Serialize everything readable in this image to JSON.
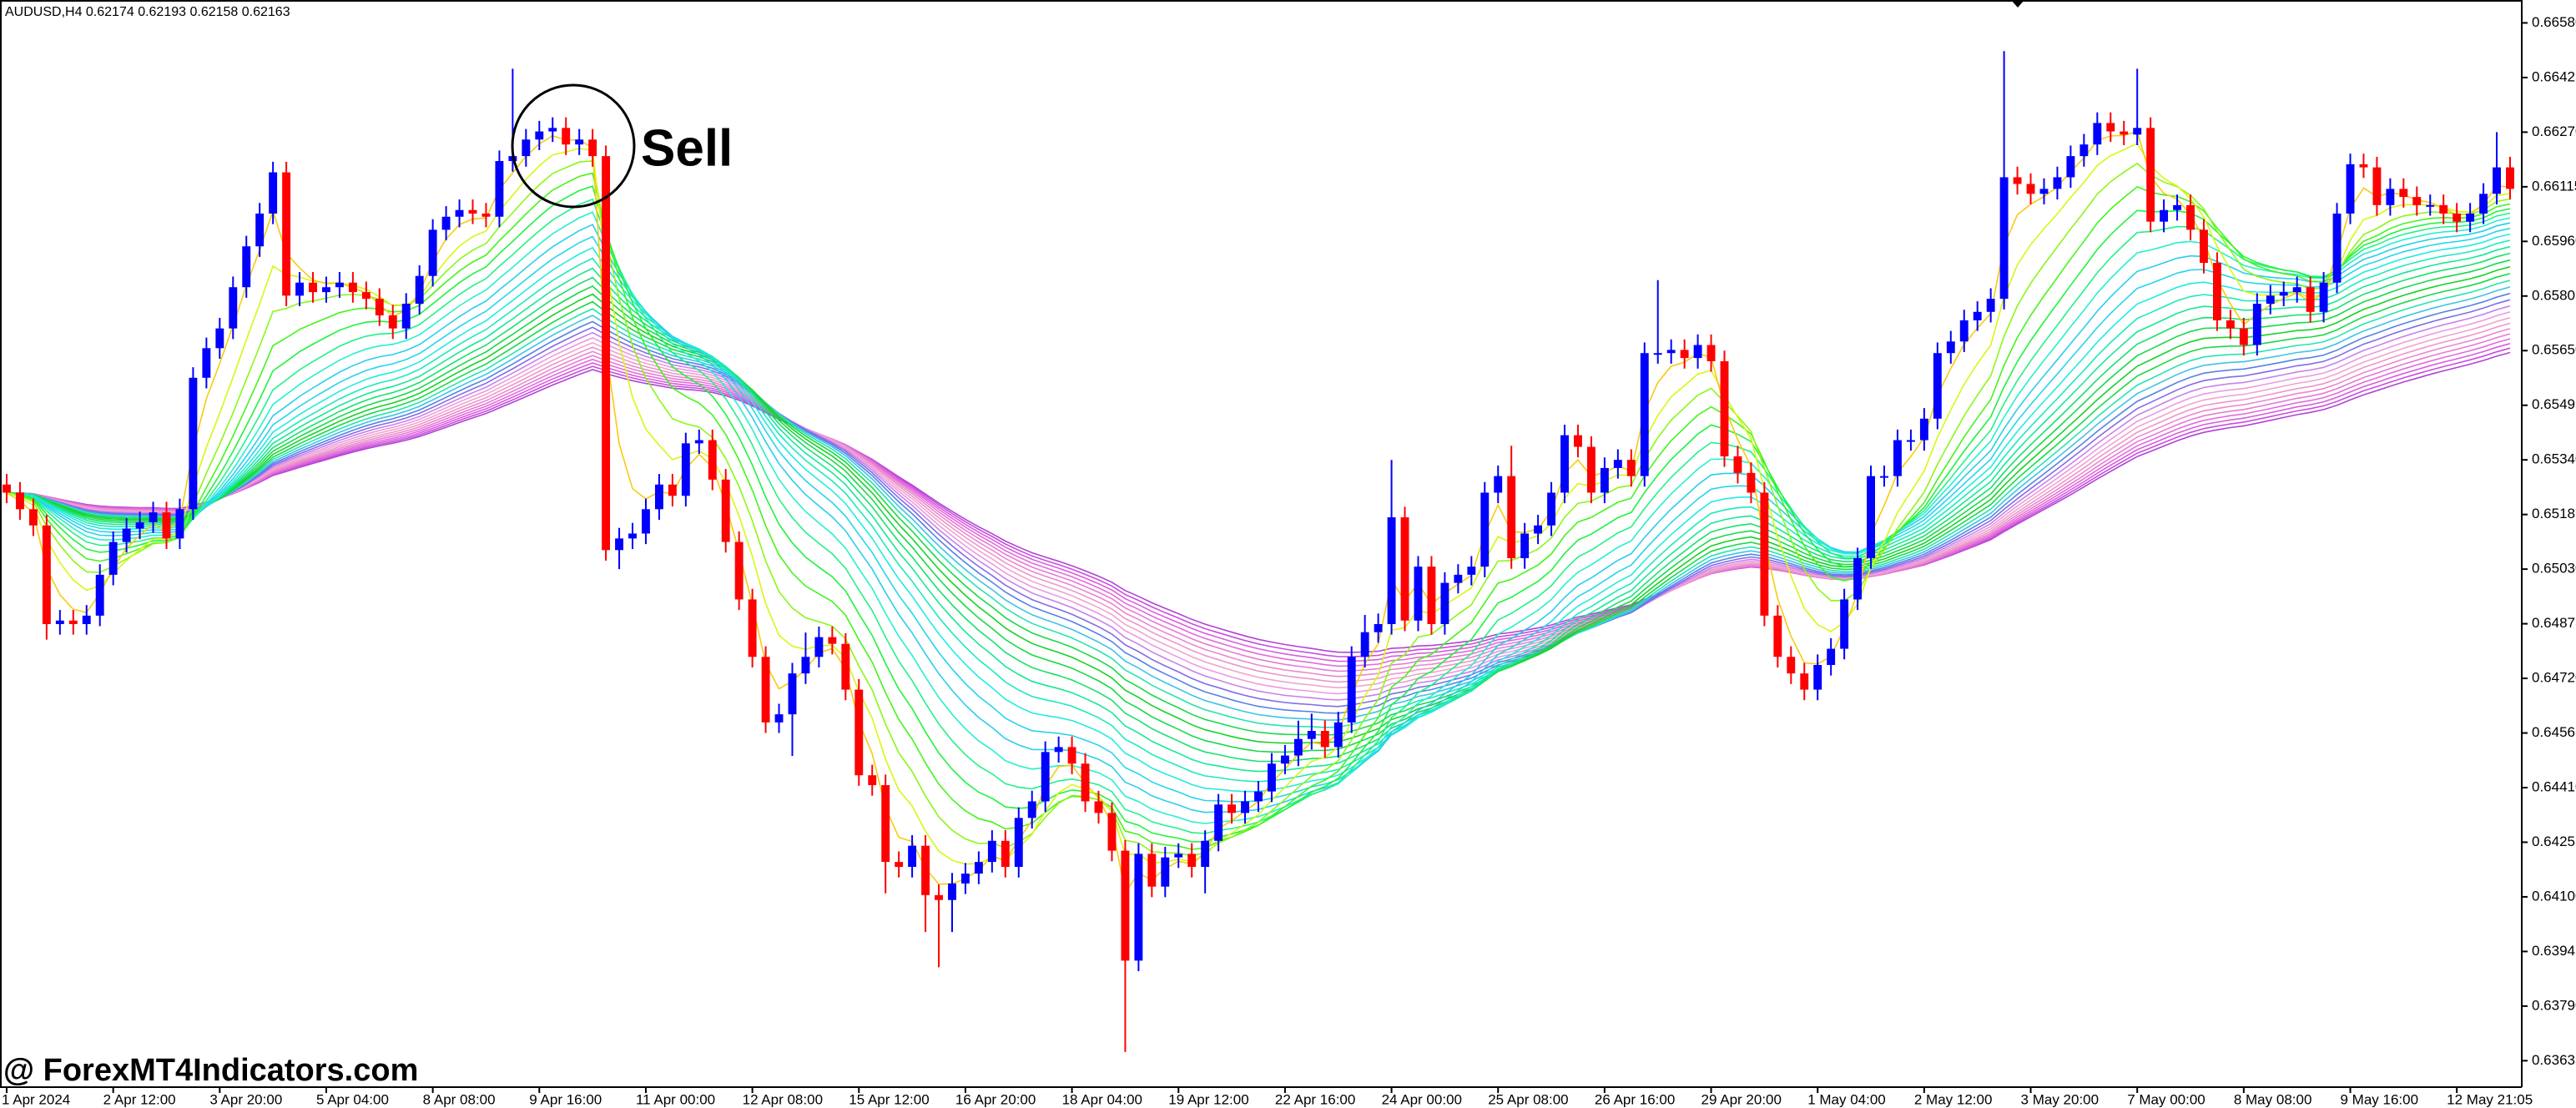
{
  "chart_data": {
    "type": "candlestick",
    "header": "AUDUSD,H4  0.62174 0.62193 0.62158 0.62163",
    "annotation": "Sell",
    "watermark": "@ ForexMT4Indicators.com",
    "up_color": "#0000ff",
    "down_color": "#ff0000",
    "ylim": [
      0.6356,
      0.66645
    ],
    "yticks": [
      {
        "value": 0.6658,
        "label": "0.66580"
      },
      0.66425,
      {
        "value": 0.6627,
        "label": "0.66270"
      },
      0.66115,
      {
        "value": 0.6596,
        "label": "0.65960"
      },
      0.65805,
      {
        "value": 0.6565,
        "label": "0.65650"
      },
      0.65495,
      {
        "value": 0.6534,
        "label": "0.65340"
      },
      0.65185,
      {
        "value": 0.6503,
        "label": "0.65030"
      },
      0.64875,
      {
        "value": 0.6472,
        "label": "0.64720"
      },
      0.64565,
      {
        "value": 0.6441,
        "label": "0.64410"
      },
      0.64255,
      {
        "value": 0.641,
        "label": "0.64100"
      },
      0.63945,
      {
        "value": 0.6379,
        "label": "0.63790"
      },
      0.63635
    ],
    "categories": [
      "1 Apr 2024",
      null,
      null,
      null,
      null,
      null,
      null,
      null,
      "2 Apr 12:00",
      null,
      null,
      null,
      null,
      null,
      null,
      null,
      "3 Apr 20:00",
      null,
      null,
      null,
      null,
      null,
      null,
      null,
      "5 Apr 04:00",
      null,
      null,
      null,
      null,
      null,
      null,
      null,
      "8 Apr 08:00",
      null,
      null,
      null,
      null,
      null,
      null,
      null,
      "9 Apr 16:00",
      null,
      null,
      null,
      null,
      null,
      null,
      null,
      "11 Apr 00:00",
      null,
      null,
      null,
      null,
      null,
      null,
      null,
      "12 Apr 08:00",
      null,
      null,
      null,
      null,
      null,
      null,
      null,
      "15 Apr 12:00",
      null,
      null,
      null,
      null,
      null,
      null,
      null,
      "16 Apr 20:00",
      null,
      null,
      null,
      null,
      null,
      null,
      null,
      "18 Apr 04:00",
      null,
      null,
      null,
      null,
      null,
      null,
      null,
      "19 Apr 12:00",
      null,
      null,
      null,
      null,
      null,
      null,
      null,
      "22 Apr 16:00",
      null,
      null,
      null,
      null,
      null,
      null,
      null,
      "24 Apr 00:00",
      null,
      null,
      null,
      null,
      null,
      null,
      null,
      "25 Apr 08:00",
      null,
      null,
      null,
      null,
      null,
      null,
      null,
      "26 Apr 16:00",
      null,
      null,
      null,
      null,
      null,
      null,
      null,
      "29 Apr 20:00",
      null,
      null,
      null,
      null,
      null,
      null,
      null,
      "1 May 04:00",
      null,
      null,
      null,
      null,
      null,
      null,
      null,
      "2 May 12:00",
      null,
      null,
      null,
      null,
      null,
      null,
      null,
      "3 May 20:00",
      null,
      null,
      null,
      null,
      null,
      null,
      null,
      "7 May 00:00",
      null,
      null,
      null,
      null,
      null,
      null,
      null,
      "8 May 08:00",
      null,
      null,
      null,
      null,
      null,
      null,
      null,
      "9 May 16:00",
      null,
      null,
      null,
      null,
      null,
      null,
      null,
      "12 May 21:05",
      null,
      null,
      null,
      null
    ],
    "open": [
      0.6527,
      0.65247,
      0.652,
      0.65154,
      0.64874,
      0.64884,
      0.64874,
      0.64898,
      0.65014,
      0.65107,
      0.65145,
      0.65163,
      0.65191,
      0.65117,
      0.652,
      0.65573,
      0.65657,
      0.65713,
      0.6583,
      0.65946,
      0.66039,
      0.66156,
      0.65806,
      0.65843,
      0.65816,
      0.6583,
      0.65843,
      0.65816,
      0.65797,
      0.6575,
      0.65713,
      0.65783,
      0.65862,
      0.65993,
      0.6603,
      0.66049,
      0.66039,
      0.6603,
      0.66188,
      0.66202,
      0.66249,
      0.66272,
      0.66282,
      0.66235,
      0.66249,
      0.66202,
      0.65084,
      0.65117,
      0.65131,
      0.652,
      0.6527,
      0.65238,
      0.65387,
      0.65396,
      0.65284,
      0.65107,
      0.64944,
      0.64781,
      0.64595,
      0.64618,
      0.64734,
      0.64781,
      0.64837,
      0.64818,
      0.64688,
      0.64445,
      0.64417,
      0.64199,
      0.64185,
      0.64245,
      0.64105,
      0.64091,
      0.64138,
      0.64166,
      0.64199,
      0.64259,
      0.64185,
      0.64324,
      0.64371,
      0.64511,
      0.64525,
      0.64478,
      0.64371,
      0.64338,
      0.64231,
      0.63919,
      0.64222,
      0.64129,
      0.64212,
      0.64222,
      0.64185,
      0.64259,
      0.64362,
      0.64338,
      0.64371,
      0.64399,
      0.64478,
      0.64501,
      0.64548,
      0.64571,
      0.64525,
      0.64595,
      0.64781,
      0.64851,
      0.64874,
      0.65177,
      0.64884,
      0.65037,
      0.64874,
      0.64991,
      0.65014,
      0.65037,
      0.65247,
      0.65294,
      0.65061,
      0.65131,
      0.65154,
      0.65247,
      0.6541,
      0.65377,
      0.65247,
      0.65317,
      0.6534,
      0.65294,
      0.65643,
      0.65643,
      0.65652,
      0.65629,
      0.65666,
      0.6562,
      0.6535,
      0.65303,
      0.65247,
      0.64898,
      0.64781,
      0.64734,
      0.64688,
      0.64758,
      0.64804,
      0.64944,
      0.65061,
      0.65294,
      0.65294,
      0.65396,
      0.65396,
      0.65457,
      0.65643,
      0.65676,
      0.65736,
      0.6576,
      0.65797,
      0.66142,
      0.66123,
      0.66095,
      0.66109,
      0.66142,
      0.66202,
      0.66235,
      0.66296,
      0.66272,
      0.66263,
      0.66282,
      0.66016,
      0.66049,
      0.66063,
      0.65993,
      0.65899,
      0.65736,
      0.65713,
      0.65666,
      0.65783,
      0.65806,
      0.65816,
      0.6583,
      0.6576,
      0.65843,
      0.66039,
      0.66179,
      0.6617,
      0.66063,
      0.66109,
      0.66086,
      0.66063,
      0.66063,
      0.66039,
      0.66016,
      0.66039,
      0.66095,
      0.6617
    ],
    "high": [
      0.653,
      0.65277,
      0.6523,
      0.65184,
      0.64914,
      0.64914,
      0.64928,
      0.65044,
      0.65137,
      0.65175,
      0.65193,
      0.65221,
      0.65221,
      0.6523,
      0.65603,
      0.65687,
      0.65743,
      0.6586,
      0.65976,
      0.66069,
      0.66186,
      0.66186,
      0.65873,
      0.65873,
      0.6586,
      0.65873,
      0.65873,
      0.65846,
      0.65827,
      0.6578,
      0.65813,
      0.65892,
      0.66023,
      0.6606,
      0.66079,
      0.66079,
      0.66069,
      0.66218,
      0.6645,
      0.66279,
      0.66302,
      0.66312,
      0.66312,
      0.66279,
      0.66279,
      0.66232,
      0.65147,
      0.65161,
      0.6523,
      0.653,
      0.653,
      0.65417,
      0.65426,
      0.65426,
      0.65314,
      0.65137,
      0.64974,
      0.64811,
      0.64648,
      0.64764,
      0.6485,
      0.64867,
      0.64867,
      0.64848,
      0.64718,
      0.64475,
      0.64447,
      0.64229,
      0.64275,
      0.64275,
      0.64135,
      0.64168,
      0.64196,
      0.64229,
      0.64289,
      0.64289,
      0.64354,
      0.64401,
      0.64541,
      0.64555,
      0.64555,
      0.64508,
      0.64401,
      0.64368,
      0.64261,
      0.64252,
      0.64252,
      0.64242,
      0.64252,
      0.64252,
      0.64289,
      0.64392,
      0.64392,
      0.64401,
      0.64429,
      0.64508,
      0.64531,
      0.646,
      0.6462,
      0.64601,
      0.64625,
      0.64811,
      0.649,
      0.64904,
      0.6534,
      0.65207,
      0.65067,
      0.65067,
      0.65021,
      0.65044,
      0.65067,
      0.65277,
      0.65324,
      0.6538,
      0.65161,
      0.65184,
      0.65277,
      0.6544,
      0.6544,
      0.65407,
      0.65347,
      0.6537,
      0.6537,
      0.65673,
      0.6585,
      0.65682,
      0.65682,
      0.65696,
      0.65696,
      0.6565,
      0.6538,
      0.65333,
      0.65277,
      0.64928,
      0.64811,
      0.64764,
      0.64788,
      0.64834,
      0.64974,
      0.65091,
      0.65324,
      0.65324,
      0.65426,
      0.65426,
      0.65487,
      0.65673,
      0.65706,
      0.65766,
      0.6579,
      0.65827,
      0.665,
      0.66172,
      0.66153,
      0.66139,
      0.66172,
      0.66232,
      0.66265,
      0.66326,
      0.66326,
      0.66302,
      0.6645,
      0.66312,
      0.66079,
      0.66093,
      0.66093,
      0.66023,
      0.65929,
      0.65766,
      0.65743,
      0.65813,
      0.65836,
      0.65846,
      0.6586,
      0.6586,
      0.65873,
      0.66069,
      0.66209,
      0.66209,
      0.662,
      0.66139,
      0.66139,
      0.66116,
      0.66093,
      0.66093,
      0.66069,
      0.66069,
      0.66125,
      0.6627,
      0.662
    ],
    "low": [
      0.65217,
      0.6517,
      0.65124,
      0.6483,
      0.64844,
      0.64844,
      0.64844,
      0.64868,
      0.64984,
      0.65077,
      0.65115,
      0.65133,
      0.65087,
      0.65087,
      0.6517,
      0.65543,
      0.65627,
      0.65683,
      0.658,
      0.65916,
      0.66009,
      0.65776,
      0.65776,
      0.65786,
      0.65786,
      0.658,
      0.65786,
      0.65767,
      0.6572,
      0.65683,
      0.65683,
      0.65753,
      0.65832,
      0.65963,
      0.66,
      0.66009,
      0.66,
      0.66,
      0.66158,
      0.66172,
      0.66219,
      0.66242,
      0.66205,
      0.66205,
      0.66172,
      0.65054,
      0.6503,
      0.65087,
      0.65101,
      0.6517,
      0.65208,
      0.65208,
      0.65357,
      0.65254,
      0.65077,
      0.64914,
      0.64751,
      0.64565,
      0.64565,
      0.645,
      0.64704,
      0.64751,
      0.64788,
      0.64658,
      0.64415,
      0.64387,
      0.6411,
      0.64155,
      0.64155,
      0.64,
      0.639,
      0.64,
      0.64108,
      0.64136,
      0.64169,
      0.64155,
      0.64155,
      0.64294,
      0.64341,
      0.64481,
      0.64448,
      0.64341,
      0.64308,
      0.64201,
      0.6366,
      0.63889,
      0.64099,
      0.64099,
      0.64182,
      0.64155,
      0.6411,
      0.64229,
      0.64308,
      0.64308,
      0.64341,
      0.64369,
      0.64448,
      0.64471,
      0.64518,
      0.64495,
      0.64495,
      0.64565,
      0.64751,
      0.64821,
      0.64844,
      0.64854,
      0.64854,
      0.64844,
      0.64844,
      0.64961,
      0.64984,
      0.65007,
      0.65217,
      0.65031,
      0.65031,
      0.65101,
      0.65124,
      0.65217,
      0.65347,
      0.65217,
      0.65217,
      0.65287,
      0.65264,
      0.65264,
      0.65613,
      0.65613,
      0.65599,
      0.65599,
      0.6559,
      0.6532,
      0.65273,
      0.65217,
      0.64868,
      0.64751,
      0.64704,
      0.64658,
      0.64658,
      0.64728,
      0.64774,
      0.64914,
      0.65031,
      0.65264,
      0.65264,
      0.65366,
      0.65366,
      0.65427,
      0.65613,
      0.65646,
      0.65706,
      0.6573,
      0.65767,
      0.66093,
      0.66065,
      0.66065,
      0.66079,
      0.66112,
      0.66172,
      0.66205,
      0.66242,
      0.66233,
      0.66233,
      0.65986,
      0.65986,
      0.66019,
      0.65963,
      0.65869,
      0.65706,
      0.65683,
      0.65636,
      0.65636,
      0.65753,
      0.65776,
      0.65786,
      0.6573,
      0.6573,
      0.65813,
      0.66009,
      0.6614,
      0.66033,
      0.66033,
      0.66056,
      0.66033,
      0.66033,
      0.66009,
      0.65986,
      0.65986,
      0.66009,
      0.66065,
      0.66079
    ],
    "close": [
      0.65247,
      0.652,
      0.65154,
      0.64874,
      0.64884,
      0.64874,
      0.64898,
      0.65014,
      0.65107,
      0.65145,
      0.65163,
      0.65191,
      0.65117,
      0.652,
      0.65573,
      0.65657,
      0.65713,
      0.6583,
      0.65946,
      0.66039,
      0.66156,
      0.65806,
      0.65843,
      0.65816,
      0.6583,
      0.65843,
      0.65816,
      0.65797,
      0.6575,
      0.65713,
      0.65783,
      0.65862,
      0.65993,
      0.6603,
      0.66049,
      0.66039,
      0.6603,
      0.66188,
      0.66202,
      0.66249,
      0.66272,
      0.66282,
      0.66235,
      0.66249,
      0.66202,
      0.65084,
      0.65117,
      0.65131,
      0.652,
      0.6527,
      0.65238,
      0.65387,
      0.65396,
      0.65284,
      0.65107,
      0.64944,
      0.64781,
      0.64595,
      0.64618,
      0.64734,
      0.64781,
      0.64837,
      0.64818,
      0.64688,
      0.64445,
      0.64417,
      0.64199,
      0.64185,
      0.64245,
      0.64105,
      0.64091,
      0.64138,
      0.64166,
      0.64199,
      0.64259,
      0.64185,
      0.64324,
      0.64371,
      0.64511,
      0.64525,
      0.64478,
      0.64371,
      0.64338,
      0.64231,
      0.63919,
      0.64222,
      0.64129,
      0.64212,
      0.64222,
      0.64185,
      0.64259,
      0.64362,
      0.64338,
      0.64371,
      0.64399,
      0.64478,
      0.64501,
      0.64548,
      0.64571,
      0.64525,
      0.64595,
      0.64781,
      0.64851,
      0.64874,
      0.65177,
      0.64884,
      0.65037,
      0.64874,
      0.64991,
      0.65014,
      0.65037,
      0.65247,
      0.65294,
      0.65061,
      0.65131,
      0.65154,
      0.65247,
      0.6541,
      0.65377,
      0.65247,
      0.65317,
      0.6534,
      0.65294,
      0.65643,
      0.65643,
      0.65652,
      0.65629,
      0.65666,
      0.6562,
      0.6535,
      0.65303,
      0.65247,
      0.64898,
      0.64781,
      0.64734,
      0.64688,
      0.64758,
      0.64804,
      0.64944,
      0.65061,
      0.65294,
      0.65294,
      0.65396,
      0.65396,
      0.65457,
      0.65643,
      0.65676,
      0.65736,
      0.6576,
      0.65797,
      0.66142,
      0.66123,
      0.66095,
      0.66109,
      0.66142,
      0.66202,
      0.66235,
      0.66296,
      0.66272,
      0.66263,
      0.66282,
      0.66016,
      0.66049,
      0.66063,
      0.65993,
      0.65899,
      0.65736,
      0.65713,
      0.65666,
      0.65783,
      0.65806,
      0.65816,
      0.6583,
      0.6576,
      0.65843,
      0.66039,
      0.66179,
      0.6617,
      0.66063,
      0.66109,
      0.66086,
      0.66063,
      0.66063,
      0.66039,
      0.66016,
      0.66039,
      0.66095,
      0.6617,
      0.66109
    ]
  }
}
